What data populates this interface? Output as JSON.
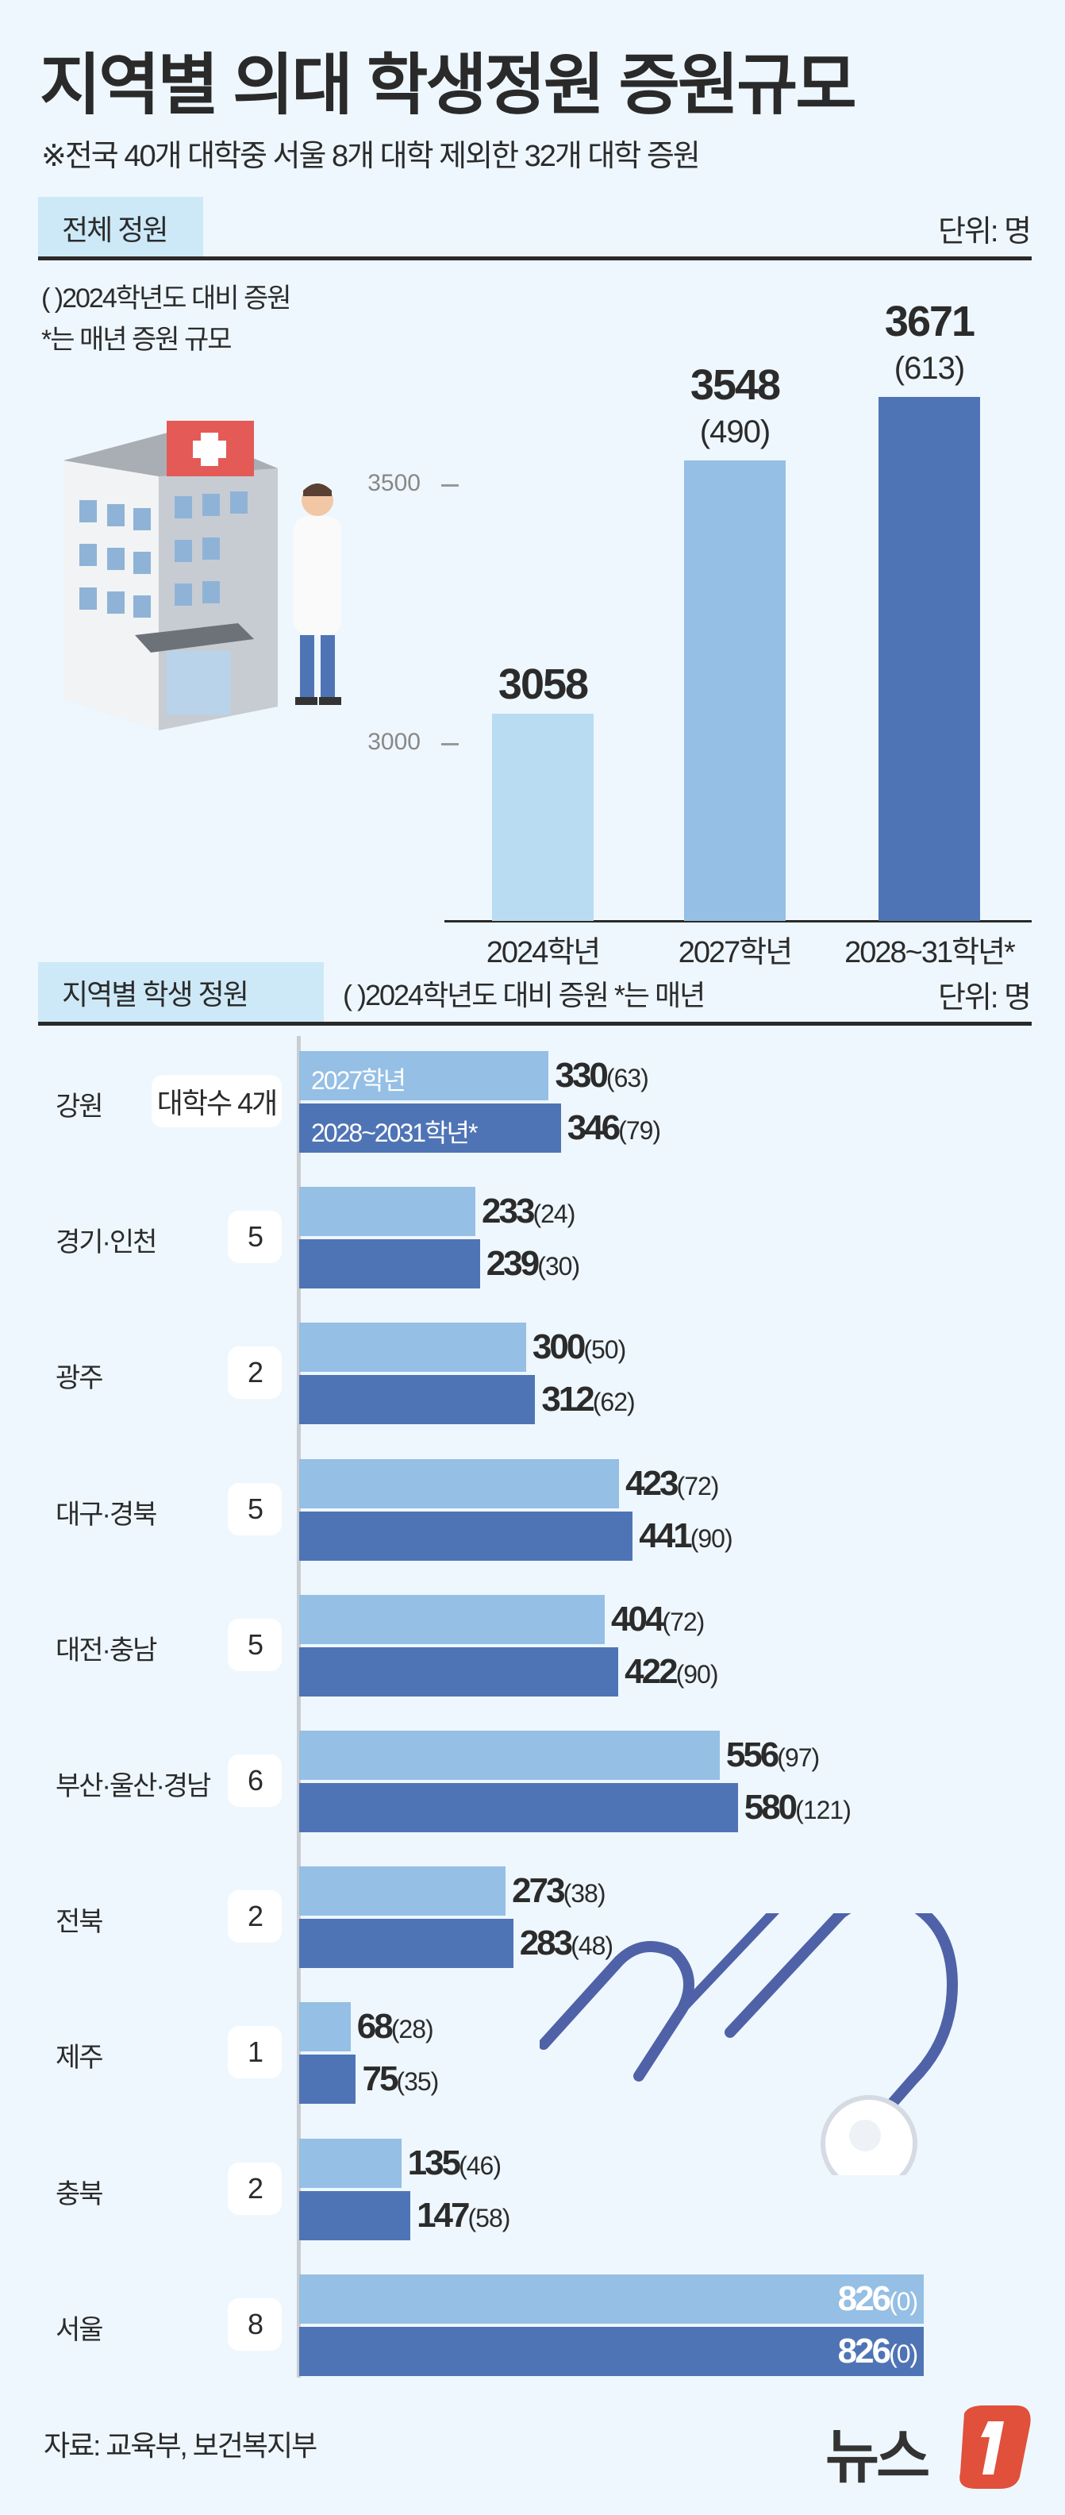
{
  "header": {
    "title": "지역별 의대 학생정원 증원규모",
    "subtitle": "※전국 40개 대학중 서울 8개 대학 제외한 32개 대학 증원"
  },
  "section_total": {
    "tab": "전체 정원",
    "unit": "단위: 명",
    "note1": "( )2024학년도 대비 증원",
    "note2": "*는 매년 증원 규모"
  },
  "section_region": {
    "tab": "지역별 학생 정원",
    "note": "( )2024학년도 대비 증원 *는 매년",
    "unit": "단위: 명",
    "legend_2027": "2027학년",
    "legend_2028": "2028~2031학년*"
  },
  "colors": {
    "background": "#eef7fd",
    "bar_2024": "#b9dcf2",
    "bar_2027": "#95bfe4",
    "bar_2028": "#4f74b6",
    "tab": "#cde9f8",
    "logo_red": "#e0503a"
  },
  "chart_data": [
    {
      "type": "bar",
      "title": "전체 정원",
      "categories": [
        "2024학년",
        "2027학년",
        "2028~31학년*"
      ],
      "values": [
        3058,
        3548,
        3671
      ],
      "value_labels": [
        "3058",
        "3548",
        "3671"
      ],
      "change_labels": [
        "",
        "(490)",
        "(613)"
      ],
      "y_ticks": [
        "3000",
        "3500"
      ],
      "ylim": [
        2658,
        3700
      ],
      "grid": false
    },
    {
      "type": "bar",
      "orientation": "horizontal",
      "title": "지역별 학생 정원",
      "series": [
        {
          "name": "2027학년",
          "values": [
            330,
            233,
            300,
            423,
            404,
            556,
            273,
            68,
            135,
            826
          ]
        },
        {
          "name": "2028~2031학년*",
          "values": [
            346,
            239,
            312,
            441,
            422,
            580,
            283,
            75,
            147,
            826
          ]
        }
      ],
      "rows": [
        {
          "region": "강원",
          "univ": "대학수 4개",
          "v27": "330",
          "c27": "(63)",
          "v28": "346",
          "c28": "(79)"
        },
        {
          "region": "경기·인천",
          "univ": "5",
          "v27": "233",
          "c27": "(24)",
          "v28": "239",
          "c28": "(30)"
        },
        {
          "region": "광주",
          "univ": "2",
          "v27": "300",
          "c27": "(50)",
          "v28": "312",
          "c28": "(62)"
        },
        {
          "region": "대구·경북",
          "univ": "5",
          "v27": "423",
          "c27": "(72)",
          "v28": "441",
          "c28": "(90)"
        },
        {
          "region": "대전·충남",
          "univ": "5",
          "v27": "404",
          "c27": "(72)",
          "v28": "422",
          "c28": "(90)"
        },
        {
          "region": "부산·울산·경남",
          "univ": "6",
          "v27": "556",
          "c27": "(97)",
          "v28": "580",
          "c28": "(121)"
        },
        {
          "region": "전북",
          "univ": "2",
          "v27": "273",
          "c27": "(38)",
          "v28": "283",
          "c28": "(48)"
        },
        {
          "region": "제주",
          "univ": "1",
          "v27": "68",
          "c27": "(28)",
          "v28": "75",
          "c28": "(35)"
        },
        {
          "region": "충북",
          "univ": "2",
          "v27": "135",
          "c27": "(46)",
          "v28": "147",
          "c28": "(58)"
        },
        {
          "region": "서울",
          "univ": "8",
          "v27": "826",
          "c27": "(0)",
          "v28": "826",
          "c28": "(0)"
        }
      ],
      "grid": false
    }
  ],
  "footer": {
    "source": "자료: 교육부, 보건복지부",
    "logo": "뉴스1"
  }
}
